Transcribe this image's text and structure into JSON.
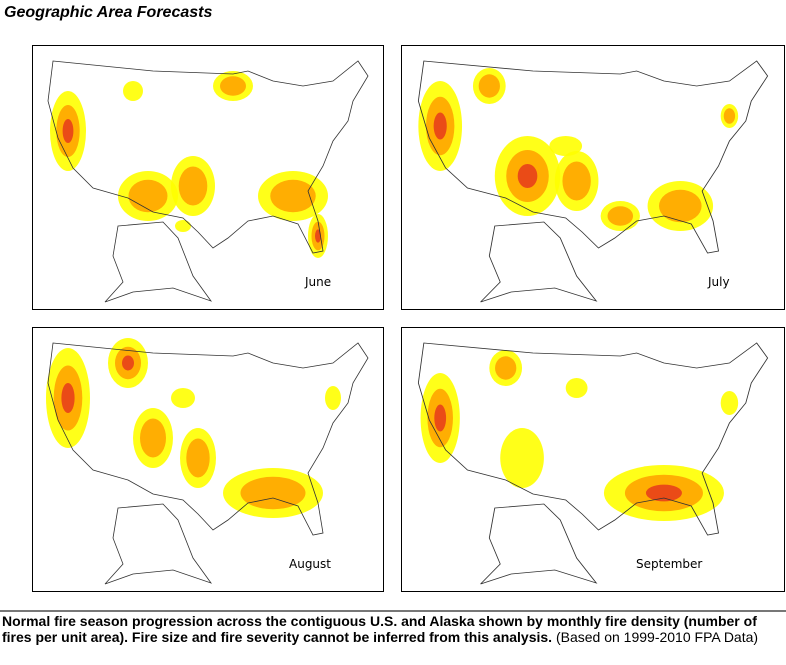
{
  "page_title": "Geographic Area Forecasts",
  "maps": [
    {
      "month": "June"
    },
    {
      "month": "July"
    },
    {
      "month": "August"
    },
    {
      "month": "September"
    }
  ],
  "caption": {
    "bold_text": "Normal fire season progression across the contiguous U.S. and Alaska shown by monthly fire density (number of fires per unit area). Fire size and fire severity cannot be inferred from this analysis.",
    "normal_text": " (Based on 1999-2010 FPA Data)"
  },
  "colors": {
    "low": "#ffff00",
    "mid": "#ffa500",
    "high": "#e8401a"
  }
}
